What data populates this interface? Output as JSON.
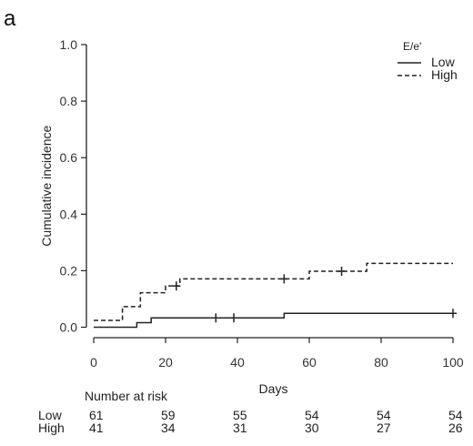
{
  "panel_label": "a",
  "chart_data": {
    "type": "line",
    "subtype": "step",
    "title": "",
    "xlabel": "Days",
    "ylabel": "Cumulative incidence",
    "xlim": [
      0,
      100
    ],
    "ylim": [
      0,
      1.0
    ],
    "x_ticks": [
      0,
      20,
      40,
      60,
      80,
      100
    ],
    "y_ticks": [
      0.0,
      0.2,
      0.4,
      0.6,
      0.8,
      1.0
    ],
    "x_tick_labels": [
      "0",
      "20",
      "40",
      "60",
      "80",
      "100"
    ],
    "y_tick_labels": [
      "0.0",
      "0.2",
      "0.4",
      "0.6",
      "0.8",
      "1.0"
    ],
    "grid": false,
    "legend": {
      "title": "E/e'",
      "position": "top-right"
    },
    "series": [
      {
        "name": "Low",
        "style": "solid",
        "steps": [
          [
            0,
            0.0
          ],
          [
            12,
            0.016
          ],
          [
            16,
            0.033
          ],
          [
            53,
            0.049
          ],
          [
            100,
            0.049
          ]
        ],
        "censored": [
          [
            34,
            0.033
          ],
          [
            39,
            0.033
          ],
          [
            100,
            0.049
          ]
        ]
      },
      {
        "name": "High",
        "style": "dashed",
        "steps": [
          [
            0,
            0.024
          ],
          [
            8,
            0.073
          ],
          [
            13,
            0.122
          ],
          [
            20,
            0.146
          ],
          [
            24,
            0.171
          ],
          [
            60,
            0.198
          ],
          [
            76,
            0.226
          ],
          [
            100,
            0.226
          ]
        ],
        "censored": [
          [
            23,
            0.146
          ],
          [
            53,
            0.171
          ],
          [
            69,
            0.198
          ]
        ]
      }
    ],
    "risk_table": {
      "title": "Number at risk",
      "times": [
        0,
        20,
        40,
        60,
        80,
        100
      ],
      "rows": [
        {
          "label": "Low",
          "values": [
            "61",
            "59",
            "55",
            "54",
            "54",
            "54"
          ]
        },
        {
          "label": "High",
          "values": [
            "41",
            "34",
            "31",
            "30",
            "27",
            "26"
          ]
        }
      ]
    }
  }
}
